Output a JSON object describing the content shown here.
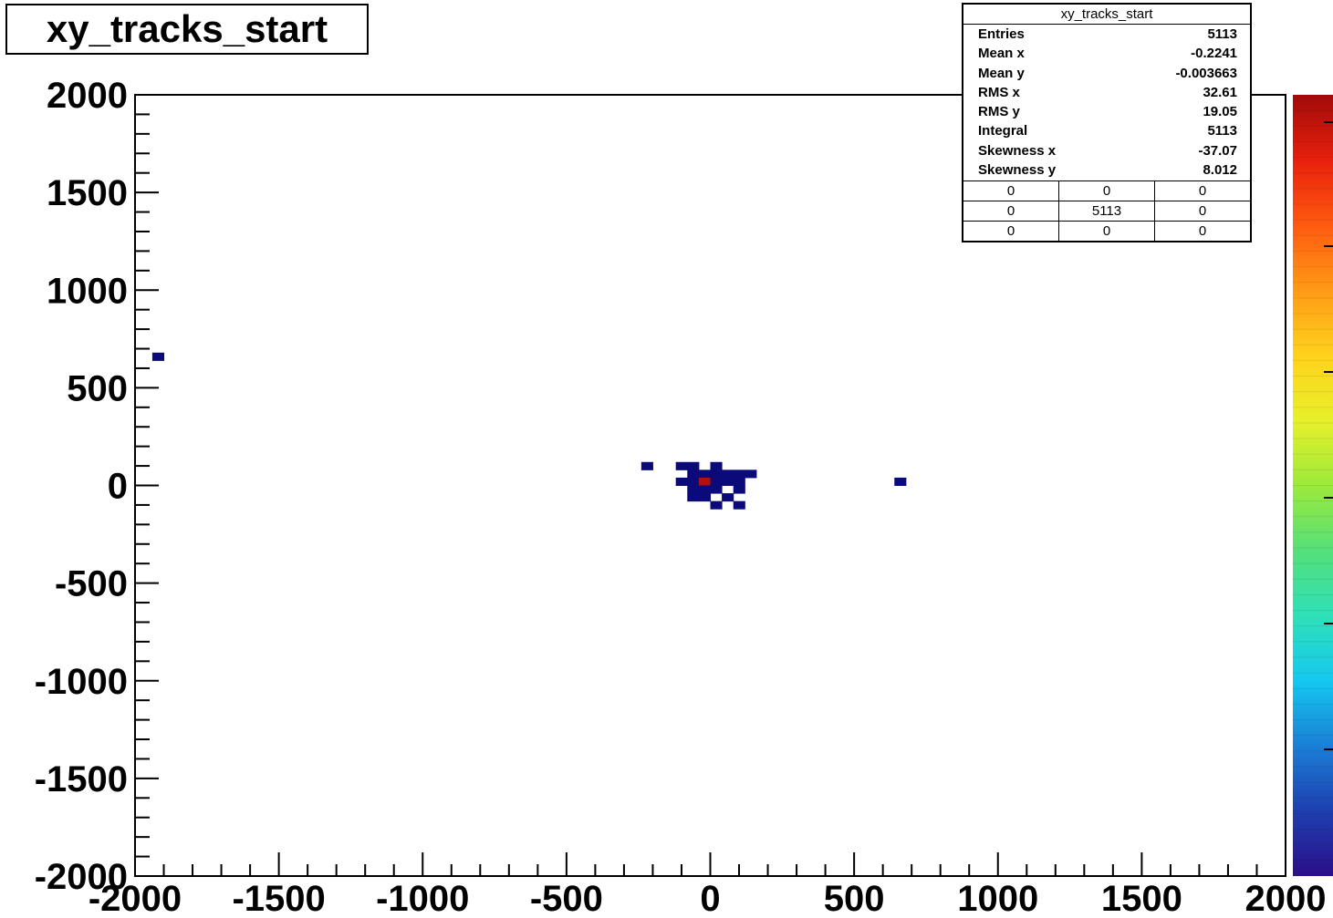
{
  "chart_data": {
    "type": "heatmap",
    "title": "xy_tracks_start",
    "xlabel": "",
    "ylabel": "",
    "xlim": [
      -2000,
      2000
    ],
    "ylim": [
      -2000,
      2000
    ],
    "x_ticks": [
      "-2000",
      "-1500",
      "-1000",
      "-500",
      "0",
      "500",
      "1000",
      "1500",
      "2000"
    ],
    "y_ticks": [
      "-2000",
      "-1500",
      "-1000",
      "-500",
      "0",
      "500",
      "1000",
      "1500",
      "2000"
    ],
    "bin_width": 40,
    "colormap": [
      "#2b0f8a",
      "#1e3fb0",
      "#1b7fd6",
      "#14c8f0",
      "#2fe0b8",
      "#55e07a",
      "#9cea3a",
      "#e8f02a",
      "#ffd21c",
      "#ff9a16",
      "#ff5a10",
      "#e8200c",
      "#a00a0a"
    ],
    "cells": [
      {
        "x": -1920,
        "y": 660,
        "level": "low"
      },
      {
        "x": -220,
        "y": 100,
        "level": "low"
      },
      {
        "x": -100,
        "y": 100,
        "level": "low"
      },
      {
        "x": -60,
        "y": 100,
        "level": "low"
      },
      {
        "x": 20,
        "y": 100,
        "level": "low"
      },
      {
        "x": -60,
        "y": 60,
        "level": "low"
      },
      {
        "x": -20,
        "y": 60,
        "level": "low"
      },
      {
        "x": 20,
        "y": 60,
        "level": "low"
      },
      {
        "x": 60,
        "y": 60,
        "level": "low"
      },
      {
        "x": 100,
        "y": 60,
        "level": "low"
      },
      {
        "x": 140,
        "y": 60,
        "level": "low"
      },
      {
        "x": -100,
        "y": 20,
        "level": "low"
      },
      {
        "x": -60,
        "y": 20,
        "level": "low"
      },
      {
        "x": -20,
        "y": 20,
        "level": "high"
      },
      {
        "x": 20,
        "y": 20,
        "level": "low"
      },
      {
        "x": 60,
        "y": 20,
        "level": "low"
      },
      {
        "x": 100,
        "y": 20,
        "level": "low"
      },
      {
        "x": -60,
        "y": -20,
        "level": "low"
      },
      {
        "x": -20,
        "y": -20,
        "level": "low"
      },
      {
        "x": 20,
        "y": -20,
        "level": "low"
      },
      {
        "x": 100,
        "y": -20,
        "level": "low"
      },
      {
        "x": -60,
        "y": -60,
        "level": "low"
      },
      {
        "x": -20,
        "y": -60,
        "level": "low"
      },
      {
        "x": 60,
        "y": -60,
        "level": "low"
      },
      {
        "x": 20,
        "y": -100,
        "level": "low"
      },
      {
        "x": 100,
        "y": -100,
        "level": "low"
      },
      {
        "x": 660,
        "y": 20,
        "level": "low"
      }
    ]
  },
  "stats": {
    "title": "xy_tracks_start",
    "rows": [
      {
        "label": "Entries",
        "value": "5113"
      },
      {
        "label": "Mean x",
        "value": "-0.2241"
      },
      {
        "label": "Mean y",
        "value": "-0.003663"
      },
      {
        "label": "RMS x",
        "value": "32.61"
      },
      {
        "label": "RMS y",
        "value": "19.05"
      },
      {
        "label": "Integral",
        "value": "5113"
      },
      {
        "label": "Skewness x",
        "value": "-37.07"
      },
      {
        "label": "Skewness y",
        "value": "8.012"
      }
    ],
    "overflow": [
      [
        "0",
        "0",
        "0"
      ],
      [
        "0",
        "5113",
        "0"
      ],
      [
        "0",
        "0",
        "0"
      ]
    ]
  },
  "colors": {
    "low": "#0a0a7a",
    "high": "#b01010"
  }
}
